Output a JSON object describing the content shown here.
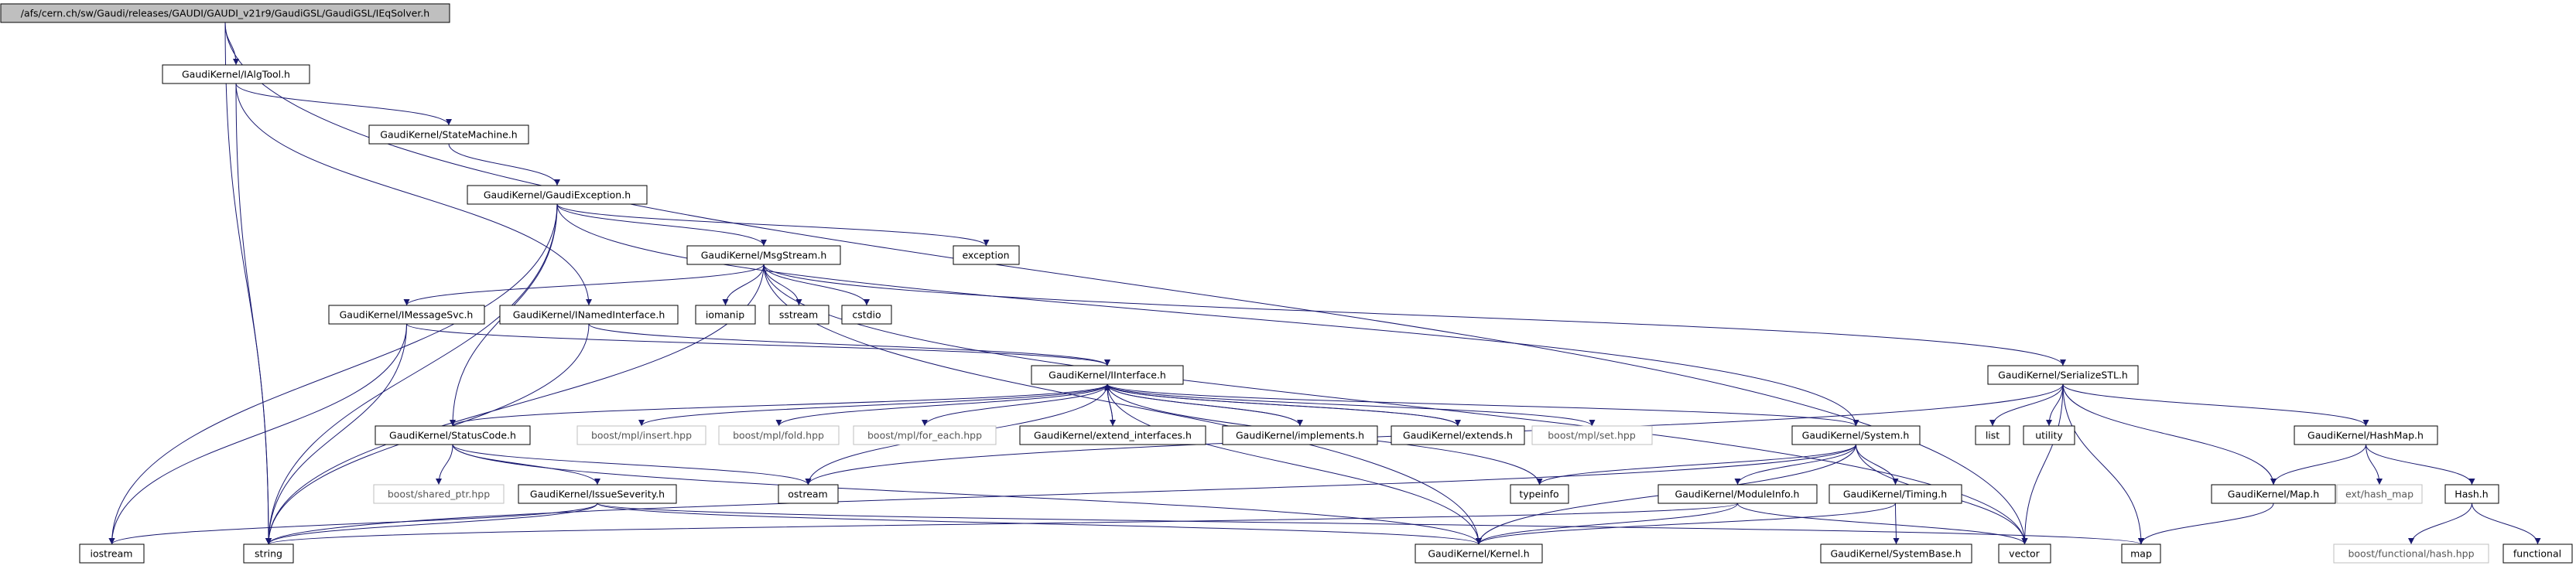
{
  "colors": {
    "edge": "#191970",
    "node_border": "#000000",
    "node_fill": "#ffffff",
    "root_fill": "#bfbfbf",
    "external_border": "#bfbfbf",
    "external_text": "#555555",
    "text": "#000000"
  },
  "nodes": {
    "root": "/afs/cern.ch/sw/Gaudi/releases/GAUDI/GAUDI_v21r9/GaudiGSL/GaudiGSL/IEqSolver.h",
    "ialgtool": "GaudiKernel/IAlgTool.h",
    "statemachine": "GaudiKernel/StateMachine.h",
    "gaudiexception": "GaudiKernel/GaudiException.h",
    "exception": "exception",
    "msgstream": "GaudiKernel/MsgStream.h",
    "imessagesvc": "GaudiKernel/IMessageSvc.h",
    "inamedinterface": "GaudiKernel/INamedInterface.h",
    "iomanip": "iomanip",
    "sstream": "sstream",
    "cstdio": "cstdio",
    "serializestl": "GaudiKernel/SerializeSTL.h",
    "iinterface": "GaudiKernel/IInterface.h",
    "statuscode": "GaudiKernel/StatusCode.h",
    "boost_insert": "boost/mpl/insert.hpp",
    "boost_fold": "boost/mpl/fold.hpp",
    "boost_foreach": "boost/mpl/for_each.hpp",
    "extend_interfaces": "GaudiKernel/extend_interfaces.h",
    "implements": "GaudiKernel/implements.h",
    "extends": "GaudiKernel/extends.h",
    "boost_set": "boost/mpl/set.hpp",
    "system": "GaudiKernel/System.h",
    "list": "list",
    "utility": "utility",
    "hashmap": "GaudiKernel/HashMap.h",
    "boost_shared_ptr": "boost/shared_ptr.hpp",
    "issueseverity": "GaudiKernel/IssueSeverity.h",
    "ostream": "ostream",
    "typeinfo": "typeinfo",
    "moduleinfo": "GaudiKernel/ModuleInfo.h",
    "timing": "GaudiKernel/Timing.h",
    "map_h": "GaudiKernel/Map.h",
    "ext_hash_map": "ext/hash_map",
    "hash_h": "Hash.h",
    "iostream": "iostream",
    "string": "string",
    "kernel": "GaudiKernel/Kernel.h",
    "vector": "vector",
    "map": "map",
    "systembase": "GaudiKernel/SystemBase.h",
    "boost_hash": "boost/functional/hash.hpp",
    "functional": "functional"
  }
}
